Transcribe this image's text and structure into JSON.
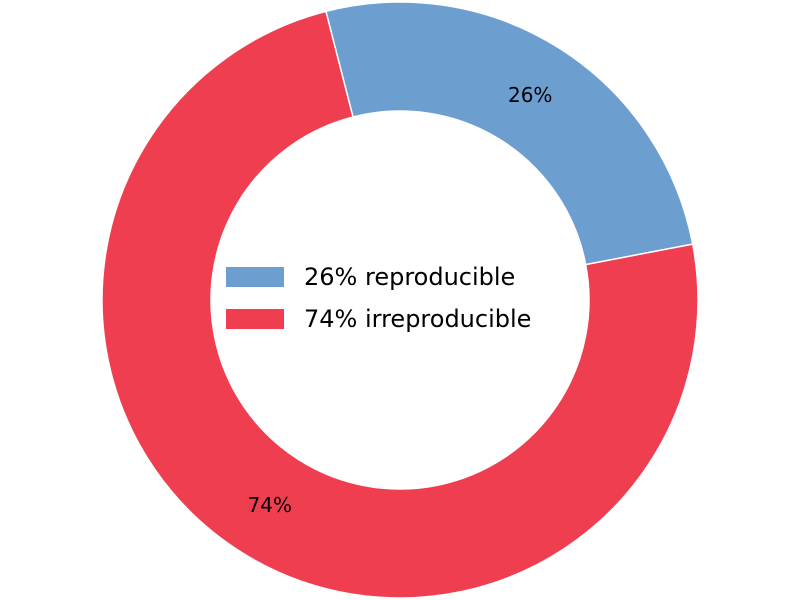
{
  "chart_data": {
    "type": "pie",
    "donut": true,
    "title": "",
    "slices": [
      {
        "label": "26% reproducible",
        "value": 26,
        "pct_label": "26%",
        "color": "#6c9ecf"
      },
      {
        "label": "74% irreproducible",
        "value": 74,
        "pct_label": "74%",
        "color": "#f03e51"
      }
    ],
    "legend": {
      "position": "center",
      "entries": [
        "26% reproducible",
        "74% irreproducible"
      ]
    }
  }
}
